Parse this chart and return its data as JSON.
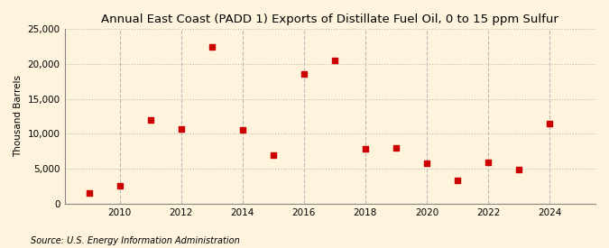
{
  "title": "Annual East Coast (PADD 1) Exports of Distillate Fuel Oil, 0 to 15 ppm Sulfur",
  "ylabel": "Thousand Barrels",
  "source": "Source: U.S. Energy Information Administration",
  "years": [
    2009,
    2010,
    2011,
    2012,
    2013,
    2014,
    2015,
    2016,
    2017,
    2018,
    2019,
    2020,
    2021,
    2022,
    2023,
    2024
  ],
  "values": [
    1500,
    2500,
    12000,
    10700,
    22400,
    10500,
    6900,
    18500,
    20500,
    7800,
    8000,
    5800,
    3400,
    5900,
    4900,
    11500
  ],
  "marker_color": "#CC0000",
  "marker_size": 5,
  "bg_color": "#FEF3DC",
  "grid_color": "#BBBBBB",
  "ylim": [
    0,
    25000
  ],
  "yticks": [
    0,
    5000,
    10000,
    15000,
    20000,
    25000
  ],
  "xticks": [
    2010,
    2012,
    2014,
    2016,
    2018,
    2020,
    2022,
    2024
  ],
  "xlim": [
    2008.2,
    2025.5
  ],
  "title_fontsize": 9.5,
  "label_fontsize": 7.5,
  "tick_fontsize": 7.5,
  "source_fontsize": 7
}
